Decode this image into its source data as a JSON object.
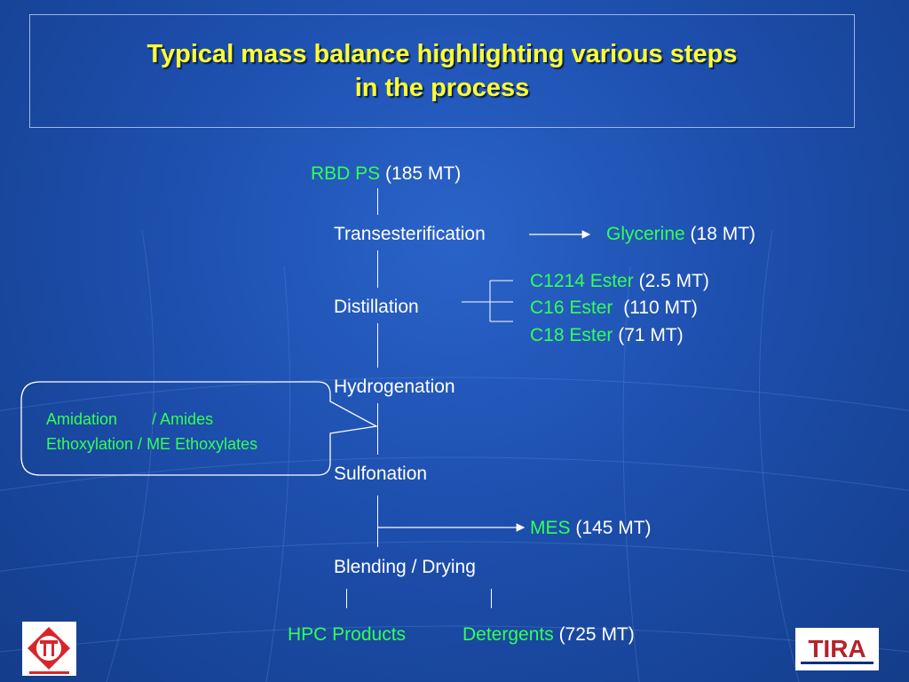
{
  "title": {
    "line1": "Typical mass balance highlighting various steps",
    "line2": "in the process"
  },
  "input": {
    "name": "RBD PS",
    "qty": "(185 MT)"
  },
  "steps": [
    "Transesterification",
    "Distillation",
    "Hydrogenation",
    "Sulfonation",
    "Blending / Drying"
  ],
  "outputs": {
    "glycerine": {
      "name": "Glycerine",
      "qty": "(18 MT)"
    },
    "esters": [
      {
        "name": "C1214 Ester",
        "qty": "(2.5 MT)"
      },
      {
        "name": "C16 Ester",
        "qty": "(110 MT)"
      },
      {
        "name": "C18 Ester",
        "qty": "(71 MT)"
      }
    ],
    "mes": {
      "name": "MES",
      "qty": "(145 MT)"
    },
    "hpc": {
      "name": "HPC Products"
    },
    "detergents": {
      "name": "Detergents",
      "qty": "(725 MT)"
    }
  },
  "callout": {
    "row1_a": "Amidation",
    "row1_b": "/ Amides",
    "row2": "Ethoxylation / ME Ethoxylates"
  },
  "logos": {
    "left": "TT",
    "right": "TIRA"
  },
  "colors": {
    "title": "#ffff33",
    "product": "#33ff55",
    "text": "#ffffff",
    "background": "#1d4fae"
  }
}
